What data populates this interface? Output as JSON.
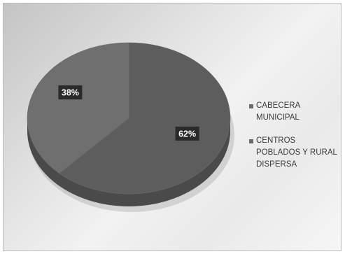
{
  "chart_data": {
    "type": "pie",
    "title": "",
    "categories": [
      "CABECERA MUNICIPAL",
      "CENTROS POBLADOS Y RURAL DISPERSA"
    ],
    "values": [
      38,
      62
    ],
    "data_labels": [
      "38%",
      "62%"
    ],
    "legend_position": "right",
    "colors": [
      "#6f6f6f",
      "#5d5d5d"
    ],
    "side_color": "#4a4a4a",
    "label_box_color": "#2a2a2a"
  },
  "legend": {
    "items": [
      {
        "label": "CABECERA MUNICIPAL",
        "color": "#6a6a6a"
      },
      {
        "label": "CENTROS POBLADOS Y RURAL DISPERSA",
        "color": "#6a6a6a"
      }
    ]
  }
}
